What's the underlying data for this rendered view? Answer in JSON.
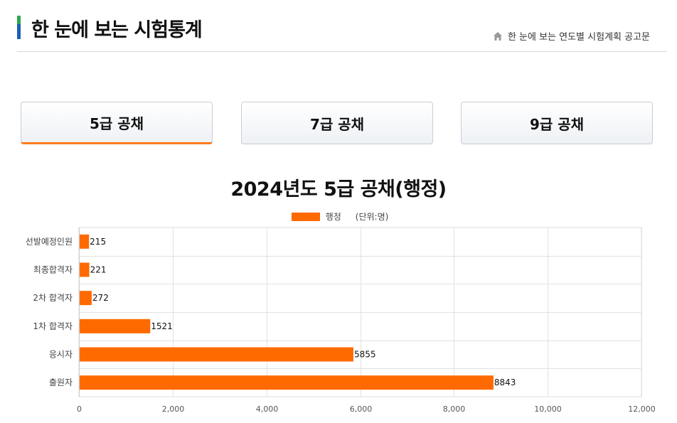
{
  "header": {
    "title": "한 눈에 보는 시험통계",
    "breadcrumb": "한 눈에 보는 연도별 시험계획 공고문"
  },
  "tabs": [
    {
      "label": "5급 공채",
      "active": true
    },
    {
      "label": "7급 공채",
      "active": false
    },
    {
      "label": "9급 공채",
      "active": false
    }
  ],
  "colors": {
    "bar": "#ff6a00",
    "active_tab_underline": "#ff7a1a",
    "title_bar": "#1a5fb4"
  },
  "chart_data": {
    "type": "bar",
    "orientation": "horizontal",
    "title": "2024년도 5급 공채(행정)",
    "unit_note": "(단위:명)",
    "categories": [
      "선발예정인원",
      "최종합격자",
      "2차 합격자",
      "1차 합격자",
      "응시자",
      "출원자"
    ],
    "series": [
      {
        "name": "행정",
        "values": [
          215,
          221,
          272,
          1521,
          5855,
          8843
        ]
      }
    ],
    "xlim": [
      0,
      12000
    ],
    "x_ticks": [
      "0",
      "2,000",
      "4,000",
      "6,000",
      "8,000",
      "10,000",
      "12,000"
    ],
    "x_tick_values": [
      0,
      2000,
      4000,
      6000,
      8000,
      10000,
      12000
    ],
    "grid": true,
    "legend_position": "top"
  }
}
